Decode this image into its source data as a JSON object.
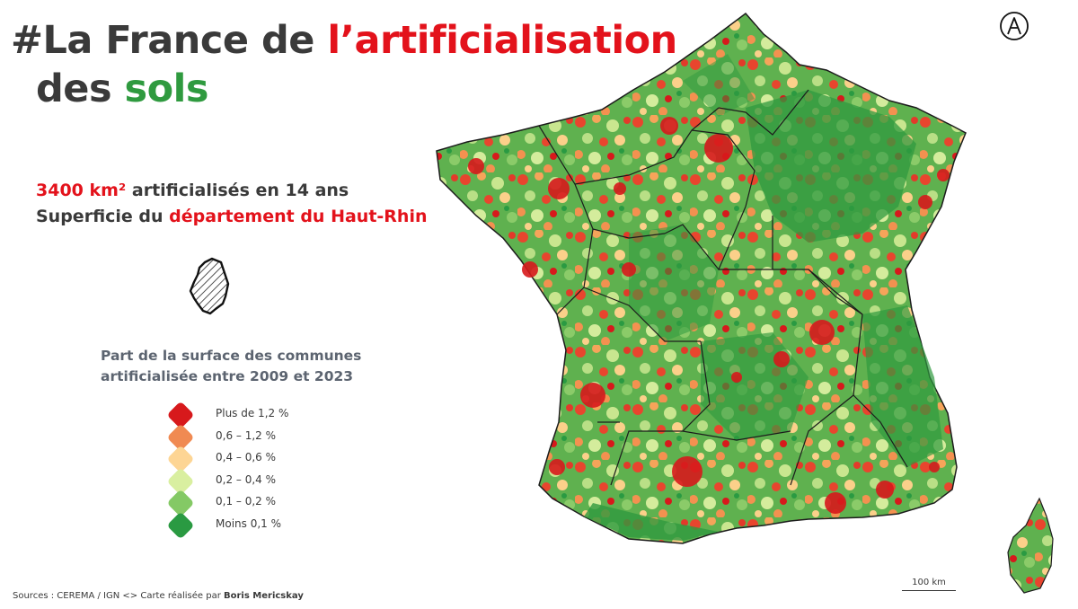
{
  "title": {
    "part1": "#La France de ",
    "part2_red": "l’artificialisation",
    "part3": "des ",
    "part4_green": "sols"
  },
  "stat": {
    "line1_red": "3400 km²",
    "line1_rest": " artificialisés en 14 ans",
    "line2_start": "Superficie du ",
    "line2_red": "département du Haut-Rhin"
  },
  "legend": {
    "title_line1": "Part de la surface des communes",
    "title_line2": "artificialisée entre 2009 et 2023",
    "items": [
      {
        "label": "Plus de 1,2 %",
        "color": "#d7191c"
      },
      {
        "label": "0,6 – 1,2 %",
        "color": "#f08a52"
      },
      {
        "label": "0,4 – 0,6 %",
        "color": "#fdd594"
      },
      {
        "label": "0,2 – 0,4 %",
        "color": "#d9efa0"
      },
      {
        "label": "0,1 – 0,2 %",
        "color": "#84c965"
      },
      {
        "label": "Moins 0,1 %",
        "color": "#2a9a42"
      }
    ]
  },
  "sources": {
    "text": "Sources : CEREMA  / IGN   <>  Carte réalisée par ",
    "author": "Boris Mericskay"
  },
  "scale_label": "100 km",
  "map": {
    "region": "France métropolitaine et Corse",
    "borders_color": "#1c1c1c"
  }
}
